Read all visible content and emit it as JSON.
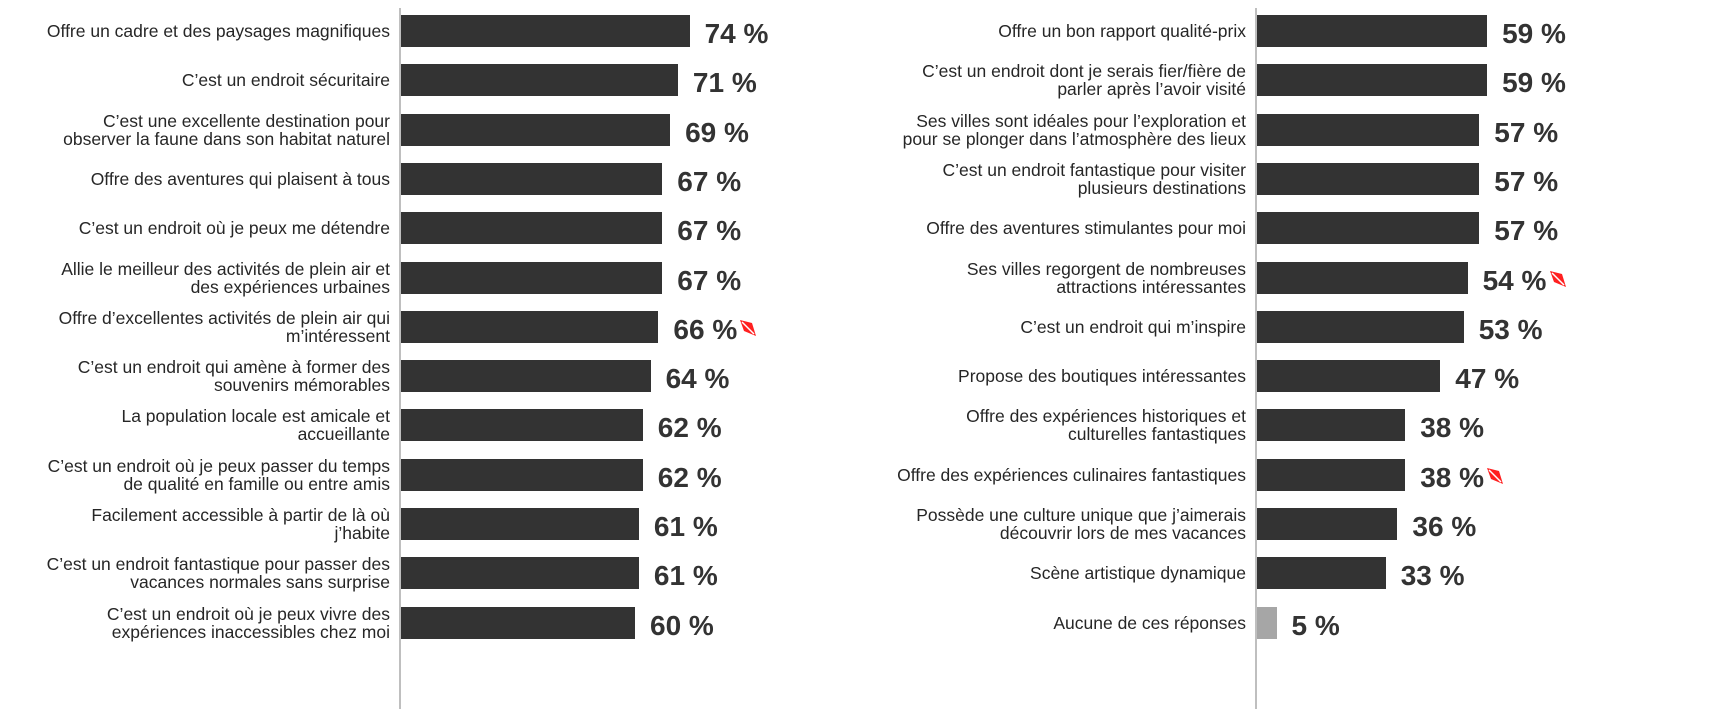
{
  "chart_data": [
    {
      "type": "bar",
      "orientation": "horizontal",
      "xlim": [
        0,
        100
      ],
      "categories": [
        "Offre un cadre et des paysages magnifiques",
        "C’est un endroit sécuritaire",
        "C’est une excellente destination pour\nobserver la faune dans son habitat naturel",
        "Offre des aventures qui plaisent à tous",
        "C’est un endroit où je peux me détendre",
        "Allie le meilleur des activités de plein air et\ndes expériences urbaines",
        "Offre d’excellentes activités de plein air qui\nm’intéressent",
        "C’est un endroit qui amène à former des\nsouvenirs mémorables",
        "La population locale est amicale et\naccueillante",
        "C’est un endroit où je peux passer du temps\nde qualité en famille ou entre amis",
        "Facilement accessible à partir de là où\nj’habite",
        "C’est un endroit fantastique pour passer des\nvacances normales sans surprise",
        "C’est un endroit où je peux vivre des\nexpériences inaccessibles chez moi"
      ],
      "values": [
        74,
        71,
        69,
        67,
        67,
        67,
        66,
        64,
        62,
        62,
        61,
        61,
        60
      ],
      "value_labels": [
        "74 %",
        "71 %",
        "69 %",
        "67 %",
        "67 %",
        "67 %",
        "66 %",
        "64 %",
        "62 %",
        "62 %",
        "61 %",
        "61 %",
        "60 %"
      ],
      "colors": [
        "#333333",
        "#333333",
        "#333333",
        "#333333",
        "#333333",
        "#333333",
        "#333333",
        "#333333",
        "#333333",
        "#333333",
        "#333333",
        "#333333",
        "#333333"
      ],
      "decline_marker": [
        false,
        false,
        false,
        false,
        false,
        false,
        true,
        false,
        false,
        false,
        false,
        false,
        false
      ]
    },
    {
      "type": "bar",
      "orientation": "horizontal",
      "xlim": [
        0,
        100
      ],
      "categories": [
        "Offre un bon rapport qualité-prix",
        "C’est un endroit dont je serais fier/fière de\nparler après l’avoir visité",
        "Ses villes sont idéales pour l’exploration et\npour se plonger dans l’atmosphère des lieux",
        "C’est un endroit fantastique pour visiter\nplusieurs destinations",
        "Offre des aventures stimulantes pour moi",
        "Ses villes regorgent de nombreuses\nattractions intéressantes",
        "C’est un endroit qui m’inspire",
        "Propose des boutiques intéressantes",
        "Offre des expériences historiques et\nculturelles fantastiques",
        "Offre des expériences culinaires fantastiques",
        "Possède une culture unique que j’aimerais\ndécouvrir lors de mes vacances",
        "Scène artistique dynamique",
        "Aucune de ces réponses"
      ],
      "values": [
        59,
        59,
        57,
        57,
        57,
        54,
        53,
        47,
        38,
        38,
        36,
        33,
        5
      ],
      "value_labels": [
        "59 %",
        "59 %",
        "57 %",
        "57 %",
        "57 %",
        "54 %",
        "53 %",
        "47 %",
        "38 %",
        "38 %",
        "36 %",
        "33 %",
        "5 %"
      ],
      "colors": [
        "#333333",
        "#333333",
        "#333333",
        "#333333",
        "#333333",
        "#333333",
        "#333333",
        "#333333",
        "#333333",
        "#333333",
        "#333333",
        "#333333",
        "#a6a6a6"
      ],
      "decline_marker": [
        false,
        false,
        false,
        false,
        false,
        true,
        false,
        false,
        false,
        true,
        false,
        false,
        false
      ]
    }
  ]
}
